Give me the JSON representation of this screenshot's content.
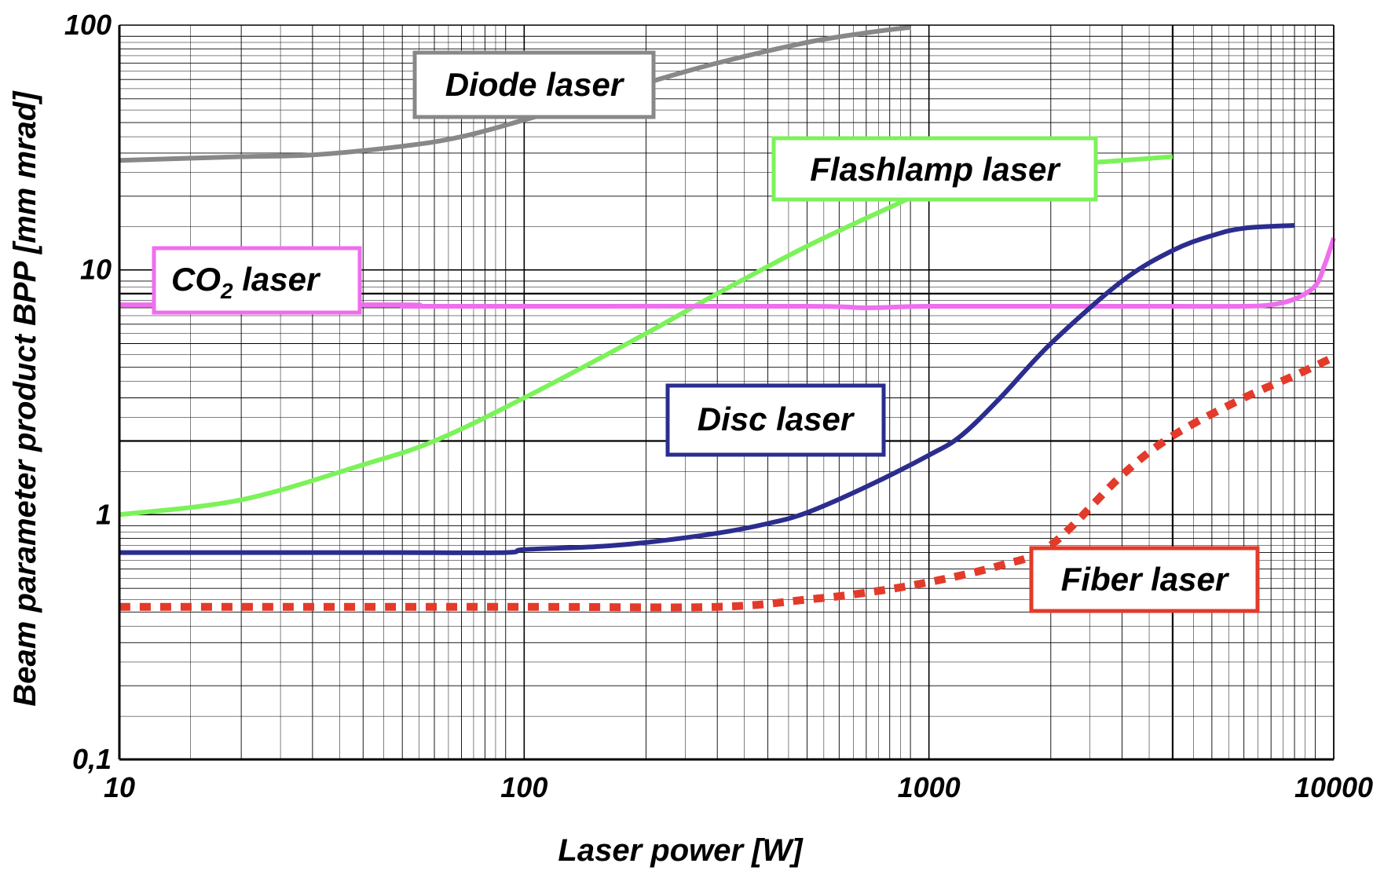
{
  "chart_data": {
    "type": "line",
    "xlabel": "Laser power [W]",
    "ylabel": "Beam parameter product BPP [mm mrad]",
    "x_scale": "log",
    "y_scale": "log",
    "xlim": [
      10,
      10000
    ],
    "ylim": [
      0.1,
      100
    ],
    "x_ticks": [
      "10",
      "100",
      "1000",
      "10000"
    ],
    "y_ticks": [
      "0,1",
      "1",
      "10",
      "100"
    ],
    "grid": true,
    "series": [
      {
        "name": "Diode laser",
        "color": "#888888",
        "style": "solid",
        "x": [
          10,
          20,
          30,
          50,
          70,
          100,
          150,
          200,
          300,
          500,
          700,
          900
        ],
        "y": [
          28,
          29,
          29.5,
          32,
          35,
          41,
          50,
          58,
          70,
          85,
          93,
          98
        ]
      },
      {
        "name": "Flashlamp laser",
        "color": "#7CF25A",
        "style": "solid",
        "x": [
          10,
          20,
          40,
          60,
          100,
          200,
          300,
          500,
          800,
          1000,
          1500,
          2000,
          3000,
          4000
        ],
        "y": [
          1.0,
          1.15,
          1.6,
          2.0,
          3.0,
          5.5,
          8.0,
          12.5,
          18,
          21,
          24.5,
          26.5,
          28,
          29
        ]
      },
      {
        "name": "CO2 laser",
        "color": "#EE6EEE",
        "style": "solid",
        "x": [
          10,
          50,
          51,
          100,
          500,
          700,
          1000,
          2000,
          4000,
          6000,
          7000,
          8000,
          9000,
          9500,
          10000
        ],
        "y": [
          7.2,
          7.2,
          7.1,
          7.1,
          7.1,
          7.0,
          7.1,
          7.1,
          7.1,
          7.1,
          7.2,
          7.6,
          8.6,
          10.5,
          13.5
        ]
      },
      {
        "name": "Disc laser",
        "color": "#2B2D8E",
        "style": "solid",
        "x": [
          10,
          30,
          50,
          90,
          100,
          150,
          200,
          300,
          400,
          500,
          700,
          1000,
          1200,
          1500,
          2000,
          3000,
          4000,
          5000,
          6000,
          8000
        ],
        "y": [
          0.7,
          0.7,
          0.7,
          0.7,
          0.72,
          0.74,
          0.77,
          0.84,
          0.92,
          1.02,
          1.3,
          1.75,
          2.1,
          3.0,
          5.0,
          9.0,
          12.0,
          13.8,
          14.8,
          15.2
        ]
      },
      {
        "name": "Fiber laser",
        "color": "#E33A2A",
        "style": "dotted",
        "x": [
          10,
          100,
          300,
          500,
          700,
          1000,
          1500,
          2000,
          3000,
          4000,
          6000,
          8000,
          10000
        ],
        "y": [
          0.42,
          0.42,
          0.42,
          0.45,
          0.48,
          0.53,
          0.62,
          0.75,
          1.45,
          2.1,
          3.0,
          3.7,
          4.4
        ]
      }
    ],
    "legend_boxes": [
      {
        "label": "Diode laser",
        "color": "#888888"
      },
      {
        "label": "Flashlamp laser",
        "color": "#7CF25A"
      },
      {
        "label_main": "CO",
        "label_sub": "2",
        "label_rest": " laser",
        "color": "#EE6EEE"
      },
      {
        "label": "Disc laser",
        "color": "#2B2D8E"
      },
      {
        "label": "Fiber laser",
        "color": "#E33A2A"
      }
    ]
  }
}
